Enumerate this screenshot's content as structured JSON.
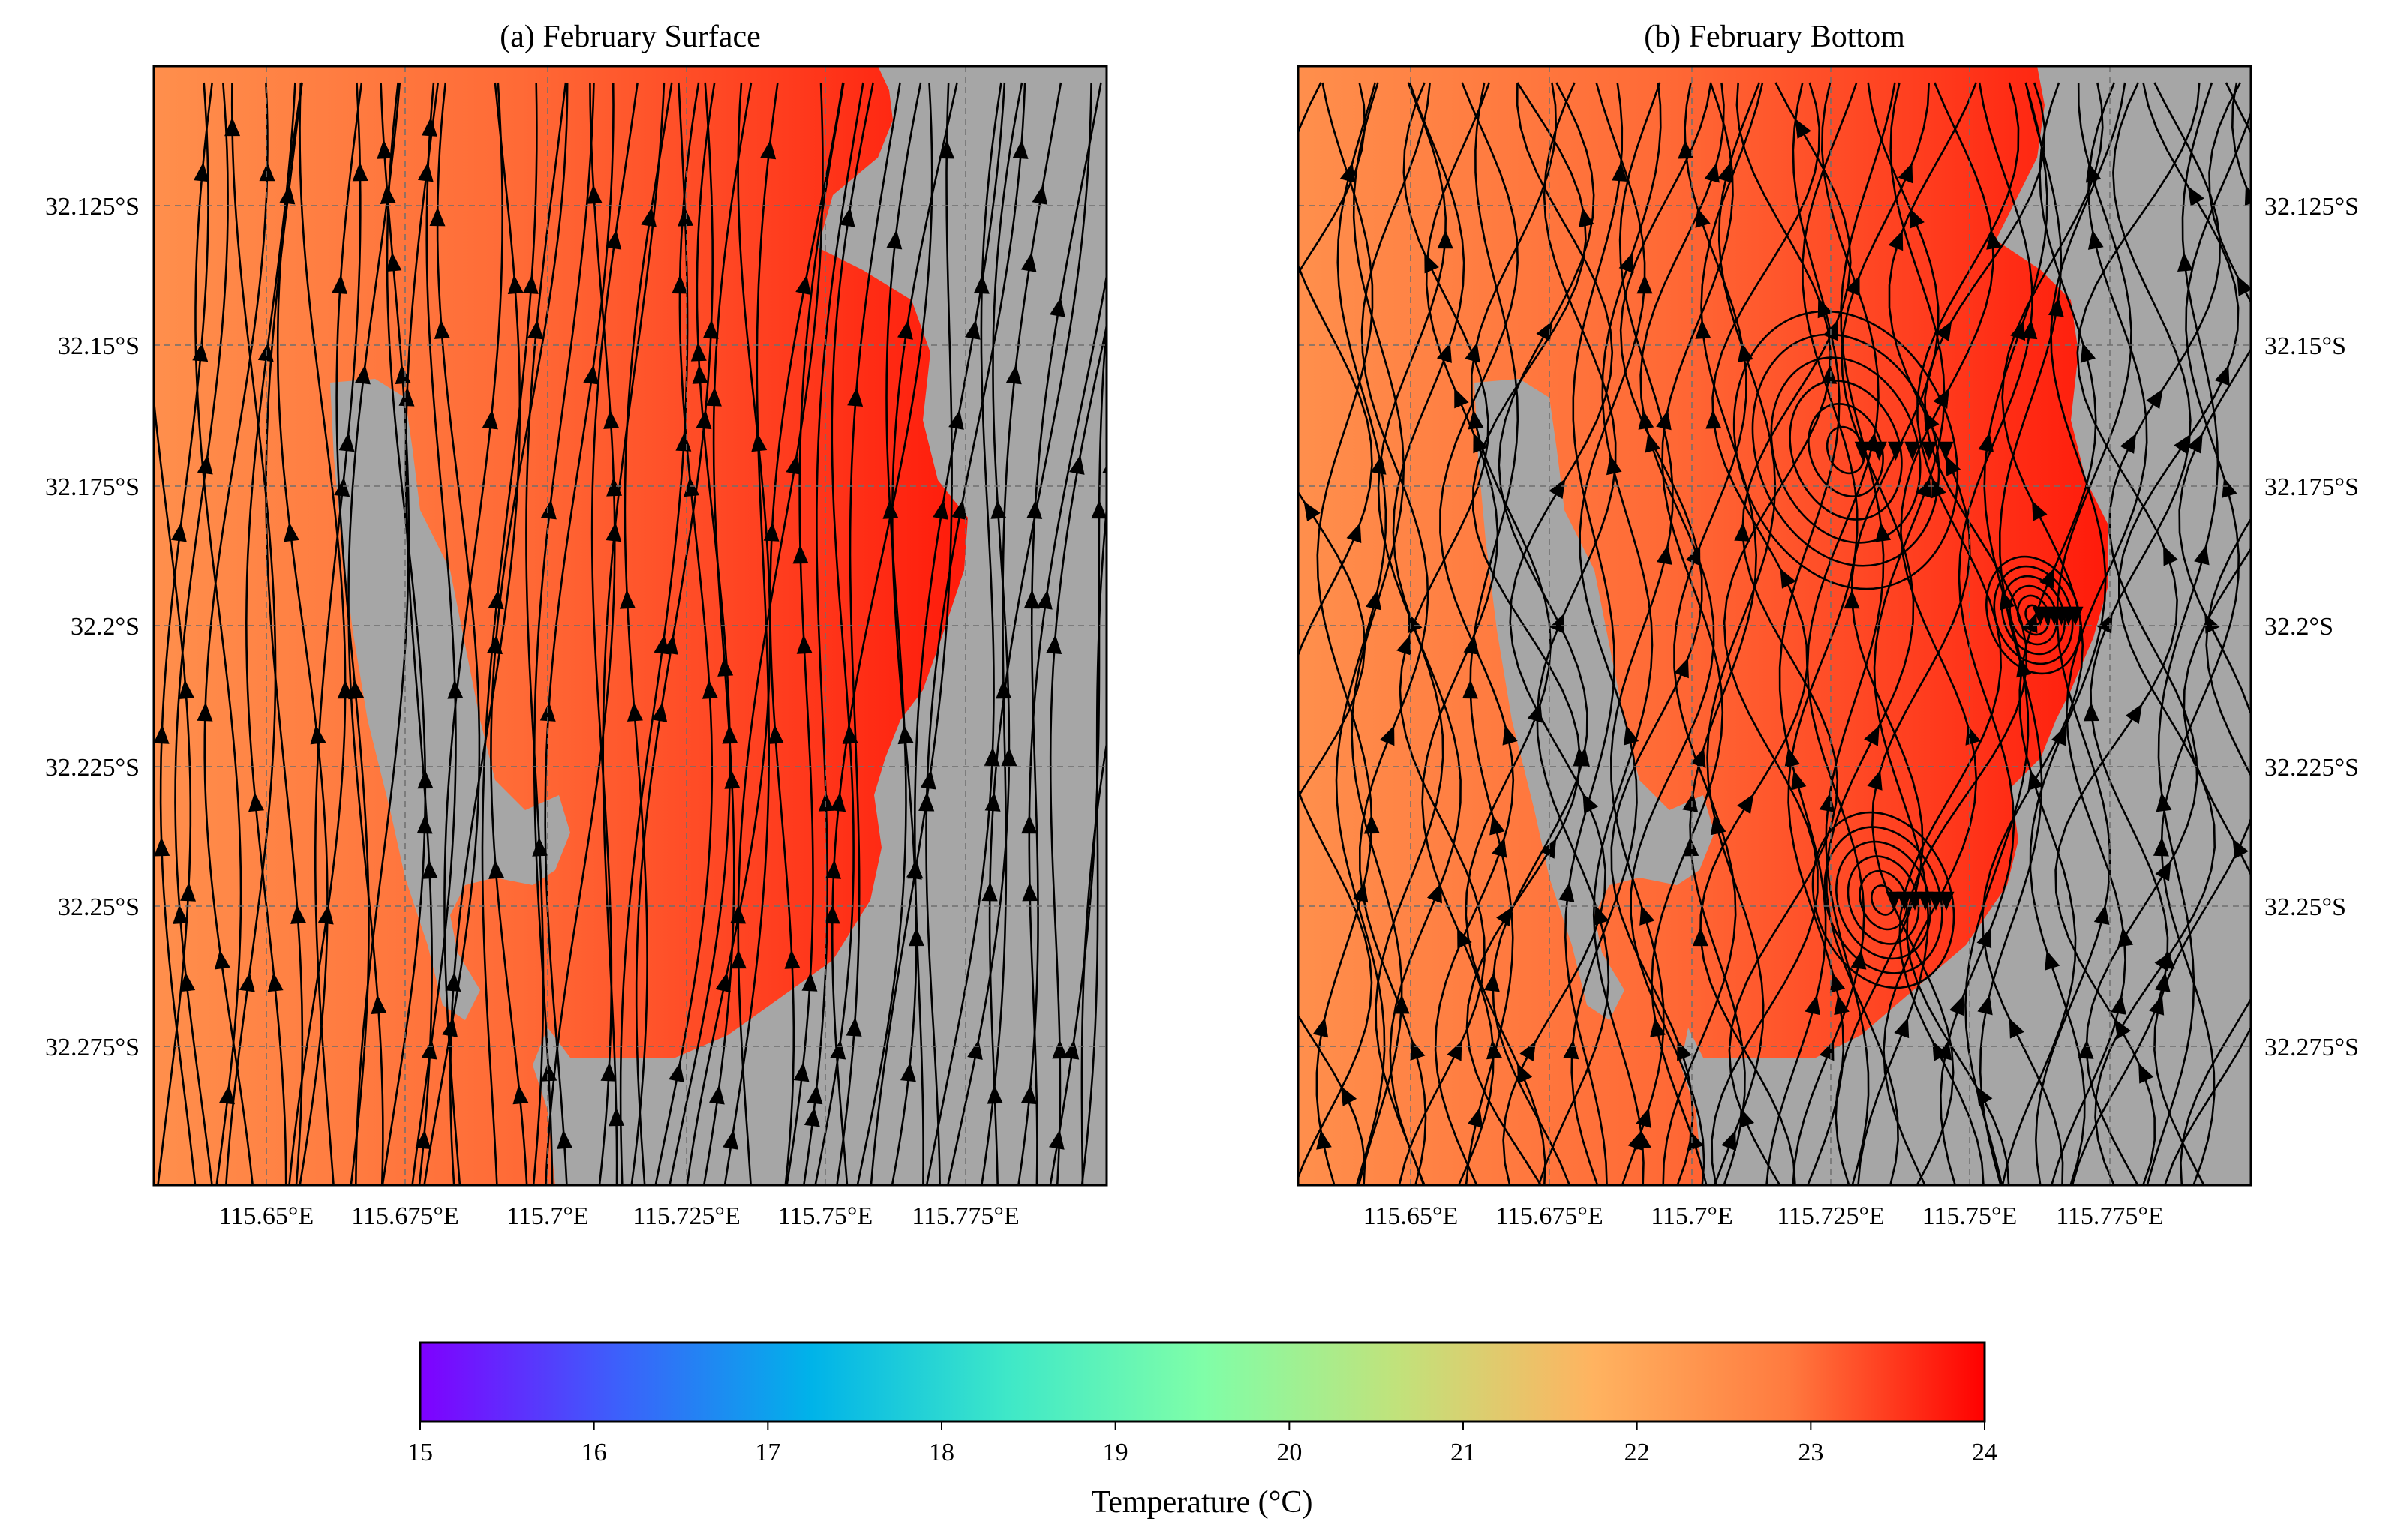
{
  "figure": {
    "panels": [
      {
        "id": "a",
        "title": "(a) February Surface",
        "pattern": "surface",
        "x_ticks": [
          "115.65°E",
          "115.675°E",
          "115.7°E",
          "115.725°E",
          "115.75°E",
          "115.775°E"
        ],
        "y_ticks": [
          "32.125°S",
          "32.15°S",
          "32.175°S",
          "32.2°S",
          "32.225°S",
          "32.25°S",
          "32.275°S"
        ],
        "y_tick_side": "left"
      },
      {
        "id": "b",
        "title": "(b) February Bottom",
        "pattern": "bottom",
        "x_ticks": [
          "115.65°E",
          "115.675°E",
          "115.7°E",
          "115.725°E",
          "115.75°E",
          "115.775°E"
        ],
        "y_ticks": [
          "32.125°S",
          "32.15°S",
          "32.175°S",
          "32.2°S",
          "32.225°S",
          "32.25°S",
          "32.275°S"
        ],
        "y_tick_side": "right"
      }
    ],
    "colorbar": {
      "label": "Temperature (°C)",
      "ticks": [
        "15",
        "16",
        "17",
        "18",
        "19",
        "20",
        "21",
        "22",
        "23",
        "24"
      ],
      "min": 15,
      "max": 24,
      "colormap": [
        "#7f00ff",
        "#3d5ffb",
        "#00b3e9",
        "#3ee8c8",
        "#7ffea8",
        "#c1e27b",
        "#ffb360",
        "#ff7a3f",
        "#ff0000"
      ]
    },
    "colors": {
      "land": "#a6a6a6",
      "water_west": "#ff8f4c",
      "water_east": "#ff2a12",
      "streamlines": "#000000",
      "grid": "#6e6e6e"
    }
  }
}
